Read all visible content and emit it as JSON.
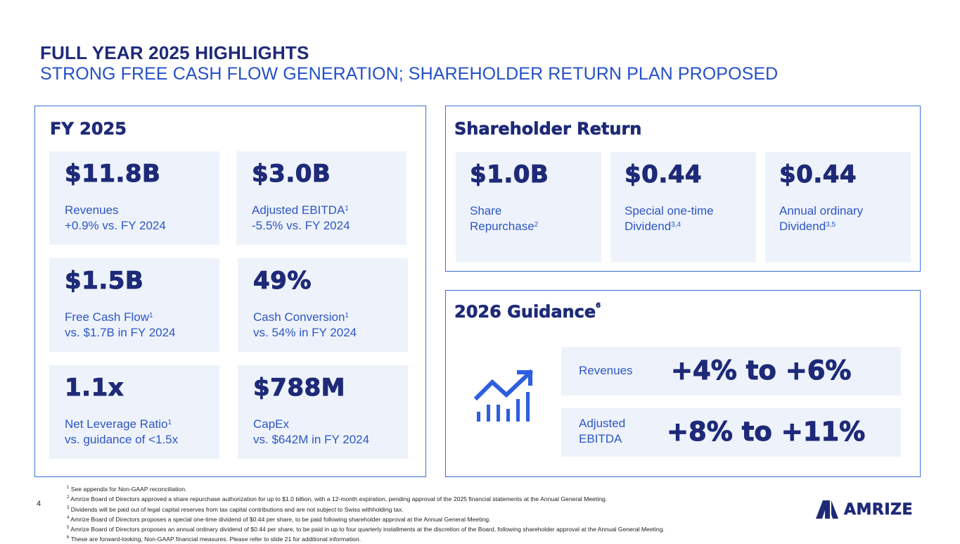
{
  "header": {
    "title": "FULL YEAR 2025 HIGHLIGHTS",
    "subtitle": "STRONG FREE CASH FLOW GENERATION; SHAREHOLDER RETURN PLAN PROPOSED"
  },
  "fy": {
    "heading": "FY 2025",
    "tiles": [
      {
        "value": "$11.8B",
        "line1": "Revenues",
        "sup": "",
        "line2": "+0.9% vs. FY 2024"
      },
      {
        "value": "$3.0B",
        "line1": "Adjusted EBITDA",
        "sup": "1",
        "line2": "-5.5% vs. FY 2024"
      },
      {
        "value": "$1.5B",
        "line1": "Free Cash Flow",
        "sup": "1",
        "line2": "vs. $1.7B in FY 2024"
      },
      {
        "value": "49%",
        "line1": "Cash Conversion",
        "sup": "1",
        "line2": "vs. 54% in FY 2024"
      },
      {
        "value": "1.1x",
        "line1": "Net Leverage Ratio",
        "sup": "1",
        "line2": "vs. guidance of <1.5x"
      },
      {
        "value": "$788M",
        "line1": "CapEx",
        "sup": "",
        "line2": "vs. $642M in FY 2024"
      }
    ]
  },
  "shareholder": {
    "heading": "Shareholder Return",
    "tiles": [
      {
        "value": "$1.0B",
        "line1": "Share",
        "line2": "Repurchase",
        "sup": "2"
      },
      {
        "value": "$0.44",
        "line1": "Special one-time",
        "line2": "Dividend",
        "sup": "3,4"
      },
      {
        "value": "$0.44",
        "line1": "Annual ordinary",
        "line2": "Dividend",
        "sup": "3,5"
      }
    ]
  },
  "guidance": {
    "heading": "2026 Guidance",
    "heading_sup": "6",
    "rows": [
      {
        "label_line1": "Revenues",
        "label_line2": "",
        "value": "+4% to +6%"
      },
      {
        "label_line1": "Adjusted",
        "label_line2": "EBITDA",
        "value": "+8% to +11%"
      }
    ],
    "icon": "growth-chart-icon"
  },
  "footnotes": [
    {
      "num": "1",
      "text": "See appendix for Non-GAAP reconciliation."
    },
    {
      "num": "2",
      "text": "Amrize Board of Directors approved a share repurchase authorization for up to $1.0 billion, with a 12-month expiration, pending approval of the 2025 financial statements at the Annual General Meeting."
    },
    {
      "num": "3",
      "text": "Dividends will be paid out of legal capital reserves from tax capital contributions and are not subject to Swiss withholding tax."
    },
    {
      "num": "4",
      "text": "Amrize Board of Directors proposes a special one-time dividend of $0.44 per share, to be paid following shareholder approval at the Annual General Meeting."
    },
    {
      "num": "5",
      "text": "Amrize Board of Directors proposes an annual ordinary dividend of $0.44 per share, to be paid in up to four quarterly installments at the discretion of the Board, following shareholder approval at the Annual General Meeting."
    },
    {
      "num": "6",
      "text": "These are forward-looking, Non-GAAP financial measures. Please refer to slide 21 for additional information."
    }
  ],
  "page_number": "4",
  "logo": {
    "text": "AMRIZE",
    "color": "#1e2a78"
  },
  "colors": {
    "navy": "#1e2a78",
    "blue": "#2d55c6",
    "tile_bg": "#eef3fb",
    "border": "#3a6fd8"
  }
}
